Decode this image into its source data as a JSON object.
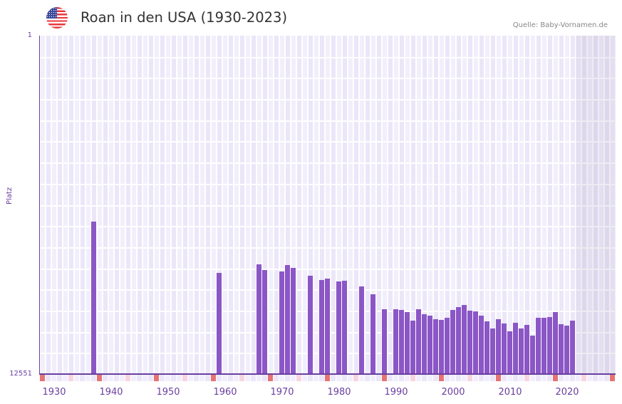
{
  "header": {
    "flag_icon": "us-flag-icon",
    "title": "Roan in den USA (1930-2023)",
    "source": "Quelle: Baby-Vornamen.de"
  },
  "axis": {
    "y_top_label": "1",
    "y_bottom_label": "12551",
    "y_title": "Platz"
  },
  "colors": {
    "bar": "#8b56c6",
    "axis": "#6a3fa0",
    "grid_a": "#f2effc",
    "grid_b": "#ebe6f8",
    "shade": "#e3dfed",
    "decade_marker": "#e57373",
    "half_decade_marker": "#f6d5df"
  },
  "chart_data": {
    "type": "bar",
    "title": "Roan in den USA (1930-2023)",
    "xlabel": "",
    "ylabel": "Platz",
    "y_inverted": true,
    "ylim": [
      1,
      12551
    ],
    "x_range": [
      1928,
      2028
    ],
    "shaded_from": 2022,
    "x_ticks": [
      1930,
      1940,
      1950,
      1960,
      1970,
      1980,
      1990,
      2000,
      2010,
      2020
    ],
    "grid": true,
    "legend": null,
    "categories": [
      1937,
      1959,
      1966,
      1967,
      1970,
      1971,
      1972,
      1975,
      1977,
      1978,
      1980,
      1981,
      1984,
      1986,
      1988,
      1990,
      1991,
      1992,
      1993,
      1994,
      1995,
      1996,
      1997,
      1998,
      1999,
      2000,
      2001,
      2002,
      2003,
      2004,
      2005,
      2006,
      2007,
      2008,
      2009,
      2010,
      2011,
      2012,
      2013,
      2014,
      2015,
      2016,
      2017,
      2018,
      2019,
      2020,
      2021
    ],
    "values": [
      6897,
      8798,
      8481,
      8692,
      8745,
      8508,
      8613,
      8904,
      9062,
      9010,
      9115,
      9089,
      9300,
      9591,
      10146,
      10146,
      10172,
      10251,
      10568,
      10146,
      10331,
      10384,
      10516,
      10542,
      10463,
      10172,
      10067,
      9988,
      10199,
      10225,
      10384,
      10595,
      10859,
      10516,
      10674,
      10965,
      10648,
      10859,
      10727,
      11124,
      10463,
      10463,
      10437,
      10251,
      10701,
      10754,
      10568
    ]
  }
}
